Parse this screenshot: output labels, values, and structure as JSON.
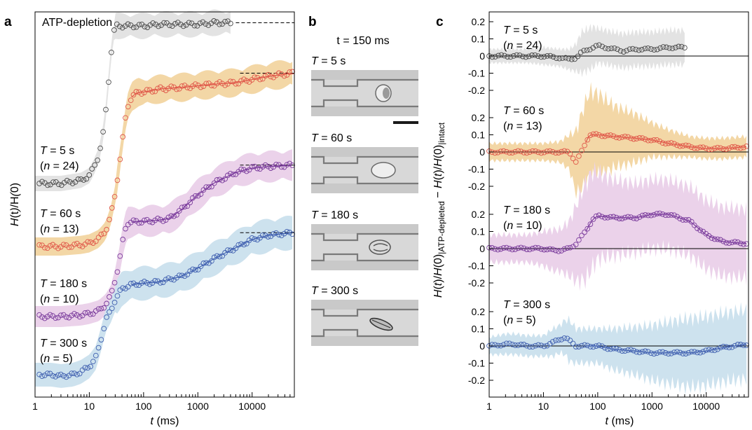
{
  "panels": {
    "a": {
      "label": "a",
      "annotation": "ATP-depletion"
    },
    "b": {
      "label": "b",
      "time_label": "t = 150 ms"
    },
    "c": {
      "label": "c"
    }
  },
  "chart_data": [
    {
      "type": "scatter",
      "panel": "a",
      "xlabel": "t (ms)",
      "ylabel": "H(t)/H(0)",
      "xscale": "log",
      "xlim": [
        1,
        60000
      ],
      "x_ticks": [
        "1",
        "10",
        "100",
        "1000",
        "10000"
      ],
      "grid": false,
      "legend": "none",
      "series": [
        {
          "T": "T = 5 s",
          "n": "(n = 24)",
          "color": "#4a4a4a",
          "band": "#e3e3e3",
          "x": [
            1,
            3,
            7,
            10,
            12,
            15,
            18,
            20,
            22,
            24,
            26,
            28,
            30,
            50,
            70,
            100,
            200,
            500,
            1000,
            2000,
            4000
          ],
          "y": [
            0.0,
            0.0,
            0.02,
            0.05,
            0.1,
            0.18,
            0.32,
            0.45,
            0.6,
            0.75,
            0.87,
            0.95,
            1.0,
            1.0,
            1.0,
            1.0,
            1.01,
            1.01,
            1.01,
            1.02,
            1.02
          ],
          "plateau": true
        },
        {
          "T": "T = 60 s",
          "n": "(n = 13)",
          "color": "#e0584a",
          "band": "#f3d7a6",
          "x": [
            1,
            3,
            7,
            10,
            15,
            20,
            25,
            30,
            35,
            40,
            45,
            50,
            60,
            80,
            100,
            200,
            500,
            1000,
            2000,
            5000,
            10000,
            20000,
            55000
          ],
          "y": [
            0.0,
            0.0,
            0.01,
            0.02,
            0.05,
            0.1,
            0.2,
            0.33,
            0.5,
            0.65,
            0.78,
            0.88,
            0.95,
            0.98,
            0.98,
            1.0,
            1.01,
            1.02,
            1.03,
            1.04,
            1.06,
            1.08,
            1.1
          ],
          "plateau": true
        },
        {
          "T": "T = 180 s",
          "n": "(n = 10)",
          "color": "#7a3b9c",
          "band": "#ebd2ea",
          "x": [
            1,
            3,
            7,
            10,
            15,
            20,
            25,
            30,
            35,
            40,
            45,
            50,
            70,
            100,
            200,
            300,
            500,
            1000,
            2000,
            5000,
            10000,
            20000,
            55000
          ],
          "y": [
            0.0,
            0.0,
            0.01,
            0.02,
            0.04,
            0.08,
            0.14,
            0.25,
            0.35,
            0.48,
            0.58,
            0.63,
            0.64,
            0.64,
            0.65,
            0.66,
            0.72,
            0.82,
            0.9,
            0.97,
            1.0,
            1.01,
            1.02
          ],
          "plateau": true
        },
        {
          "T": "T = 300 s",
          "n": "(n = 5)",
          "color": "#4060b0",
          "band": "#cde2ee",
          "x": [
            1,
            2,
            3,
            5,
            7,
            10,
            13,
            15,
            18,
            20,
            25,
            30,
            40,
            60,
            100,
            200,
            500,
            1000,
            2000,
            5000,
            10000,
            20000,
            55000
          ],
          "y": [
            0.0,
            0.0,
            -0.01,
            0.0,
            0.02,
            0.06,
            0.12,
            0.2,
            0.32,
            0.4,
            0.47,
            0.55,
            0.63,
            0.66,
            0.67,
            0.68,
            0.72,
            0.78,
            0.85,
            0.93,
            0.99,
            1.02,
            1.04
          ],
          "plateau": true
        }
      ]
    },
    {
      "type": "scatter",
      "panel": "c",
      "xlabel": "t (ms)",
      "ylabel": "H(t)/H(0)|ATP-depleted − H(t)/H(0)|intact",
      "ylabel_main": "H(t)/H(0)",
      "ylabel_sub1": "ATP-depleted",
      "ylabel_mid": " − H(t)/H(0)",
      "ylabel_sub2": "intact",
      "xscale": "log",
      "xlim": [
        1,
        60000
      ],
      "ylim": [
        -0.25,
        0.25
      ],
      "x_ticks": [
        "1",
        "10",
        "100",
        "1000",
        "10000"
      ],
      "y_ticks": [
        "0.2",
        "0.1",
        "0",
        "-0.1",
        "-0.2"
      ],
      "grid": false,
      "legend": "none",
      "series": [
        {
          "T": "T = 5 s",
          "n": "(n = 24)",
          "color": "#4a4a4a",
          "band": "#e3e3e3",
          "x": [
            1,
            2,
            5,
            10,
            20,
            30,
            40,
            50,
            80,
            100,
            200,
            300,
            500,
            1000,
            2000,
            4000
          ],
          "y": [
            0.0,
            0.0,
            0.0,
            0.0,
            -0.01,
            -0.02,
            -0.01,
            0.02,
            0.05,
            0.06,
            0.04,
            0.03,
            0.04,
            0.04,
            0.05,
            0.05
          ],
          "band_width": [
            0.04,
            0.04,
            0.04,
            0.05,
            0.05,
            0.06,
            0.08,
            0.12,
            0.12,
            0.1,
            0.1,
            0.1,
            0.1,
            0.1,
            0.1,
            0.1
          ]
        },
        {
          "T": "T = 60 s",
          "n": "(n = 13)",
          "color": "#e0584a",
          "band": "#f3d7a6",
          "x": [
            1,
            2,
            5,
            10,
            20,
            30,
            40,
            50,
            70,
            100,
            200,
            500,
            1000,
            2000,
            5000,
            10000,
            20000,
            55000
          ],
          "y": [
            0.0,
            0.0,
            0.0,
            0.0,
            0.0,
            0.0,
            -0.06,
            0.0,
            0.1,
            0.1,
            0.09,
            0.08,
            0.07,
            0.05,
            0.03,
            0.02,
            0.02,
            0.03
          ],
          "band_width": [
            0.05,
            0.05,
            0.05,
            0.05,
            0.06,
            0.1,
            0.18,
            0.22,
            0.25,
            0.24,
            0.18,
            0.14,
            0.1,
            0.08,
            0.06,
            0.06,
            0.06,
            0.06
          ]
        },
        {
          "T": "T = 180 s",
          "n": "(n = 10)",
          "color": "#7a3b9c",
          "band": "#ebd2ea",
          "x": [
            1,
            2,
            5,
            10,
            15,
            20,
            30,
            40,
            60,
            80,
            100,
            200,
            500,
            1000,
            2000,
            5000,
            10000,
            20000,
            55000
          ],
          "y": [
            0.0,
            0.0,
            0.0,
            0.0,
            -0.01,
            -0.01,
            0.0,
            0.03,
            0.1,
            0.17,
            0.19,
            0.18,
            0.18,
            0.2,
            0.2,
            0.16,
            0.08,
            0.04,
            0.03
          ],
          "band_width": [
            0.08,
            0.08,
            0.08,
            0.1,
            0.12,
            0.12,
            0.16,
            0.22,
            0.28,
            0.28,
            0.25,
            0.22,
            0.2,
            0.2,
            0.2,
            0.2,
            0.2,
            0.2,
            0.2
          ]
        },
        {
          "T": "T = 300 s",
          "n": "(n = 5)",
          "color": "#4060b0",
          "band": "#cde2ee",
          "x": [
            1,
            2,
            3,
            5,
            10,
            15,
            20,
            25,
            30,
            40,
            60,
            100,
            200,
            500,
            1000,
            2000,
            5000,
            10000,
            20000,
            55000
          ],
          "y": [
            0.0,
            0.01,
            0.01,
            0.0,
            0.0,
            0.02,
            0.04,
            0.05,
            0.03,
            0.0,
            0.0,
            0.0,
            -0.02,
            -0.03,
            -0.04,
            -0.04,
            -0.04,
            -0.03,
            -0.01,
            0.01
          ],
          "band_width": [
            0.05,
            0.06,
            0.06,
            0.06,
            0.06,
            0.08,
            0.08,
            0.1,
            0.12,
            0.1,
            0.1,
            0.1,
            0.12,
            0.14,
            0.16,
            0.18,
            0.2,
            0.2,
            0.2,
            0.2
          ]
        }
      ]
    }
  ],
  "micrographs": [
    {
      "T": "T = 5 s",
      "cell": "round"
    },
    {
      "T": "T = 60 s",
      "cell": "ellipse"
    },
    {
      "T": "T = 180 s",
      "cell": "folded"
    },
    {
      "T": "T = 300 s",
      "cell": "tilted"
    }
  ]
}
